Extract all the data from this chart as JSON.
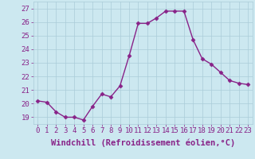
{
  "x": [
    0,
    1,
    2,
    3,
    4,
    5,
    6,
    7,
    8,
    9,
    10,
    11,
    12,
    13,
    14,
    15,
    16,
    17,
    18,
    19,
    20,
    21,
    22,
    23
  ],
  "y": [
    20.2,
    20.1,
    19.4,
    19.0,
    19.0,
    18.8,
    19.8,
    20.7,
    20.5,
    21.3,
    23.5,
    25.9,
    25.9,
    26.3,
    26.8,
    26.8,
    26.8,
    24.7,
    23.3,
    22.9,
    22.3,
    21.7,
    21.5,
    21.4
  ],
  "line_color": "#882288",
  "marker": "D",
  "marker_size": 2.5,
  "xlabel": "Windchill (Refroidissement éolien,°C)",
  "xlabel_fontsize": 7.5,
  "xtick_labels": [
    "0",
    "1",
    "2",
    "3",
    "4",
    "5",
    "6",
    "7",
    "8",
    "9",
    "10",
    "11",
    "12",
    "13",
    "14",
    "15",
    "16",
    "17",
    "18",
    "19",
    "20",
    "21",
    "22",
    "23"
  ],
  "ylim": [
    18.5,
    27.5
  ],
  "yticks": [
    19,
    20,
    21,
    22,
    23,
    24,
    25,
    26,
    27
  ],
  "background_color": "#cce8f0",
  "grid_color": "#aaccd8",
  "tick_fontsize": 6.5,
  "line_width": 1.0,
  "fig_width": 3.2,
  "fig_height": 2.0,
  "dpi": 100
}
